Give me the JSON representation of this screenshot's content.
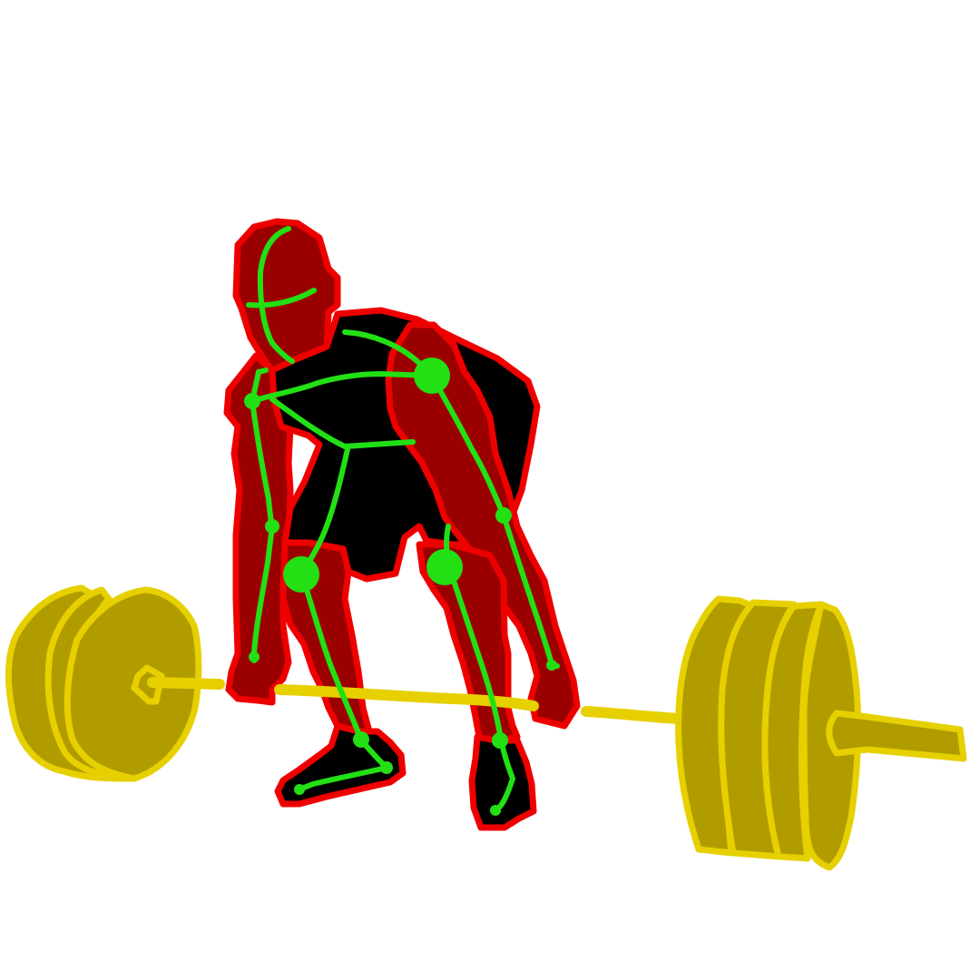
{
  "colors": {
    "background": "#ffffff",
    "body_fill": "#9b0000",
    "body_outline": "#ee0000",
    "clothing_fill": "#000000",
    "skeleton": "#22e014",
    "plate_fill": "#b19c00",
    "plate_outline": "#e6d000",
    "bar": "#e6d000"
  },
  "scene": {
    "subject": "lifter-deadlift-setup",
    "equipment": "barbell-with-plates",
    "overlay": "pose-skeleton"
  }
}
